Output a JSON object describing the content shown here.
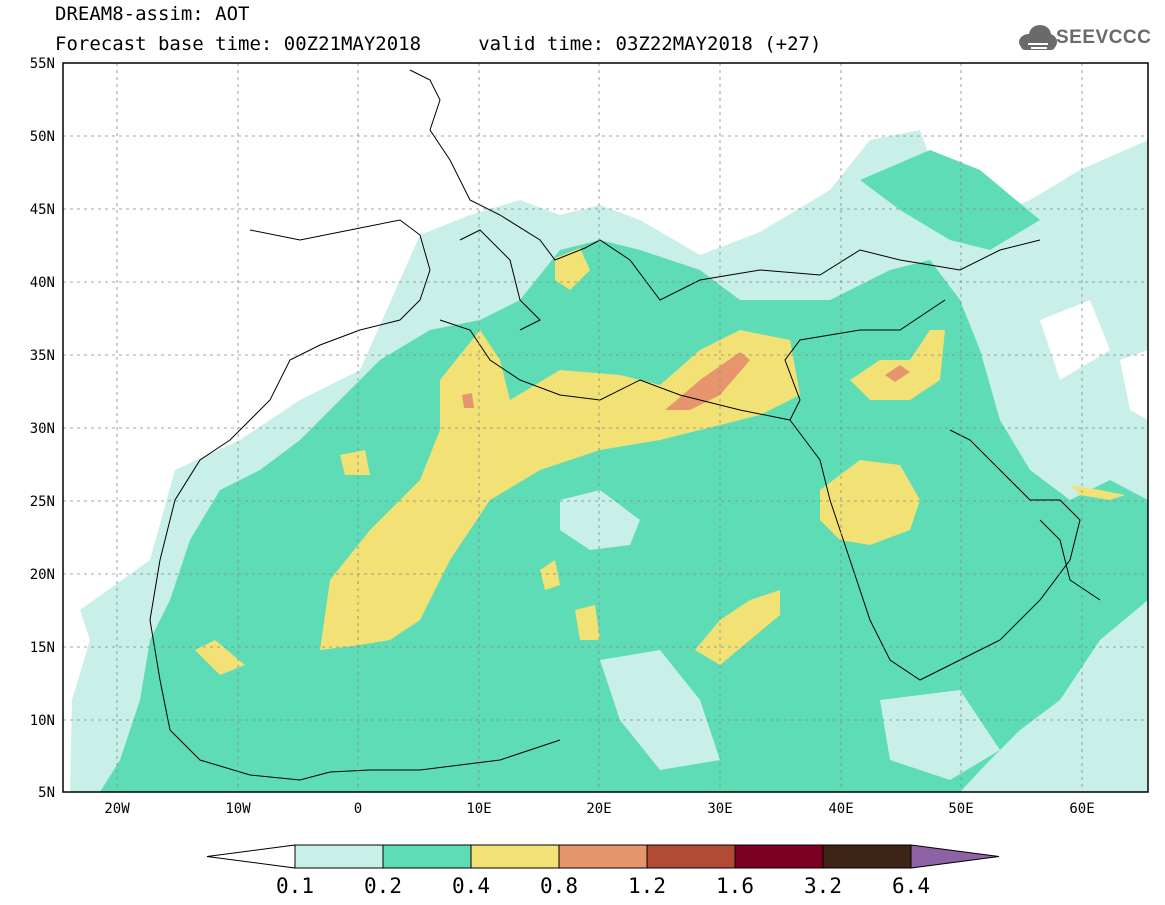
{
  "title": {
    "line1": "DREAM8-assim: AOT",
    "line2": "Forecast base time: 00Z21MAY2018     valid time: 03Z22MAY2018 (+27)"
  },
  "logo": {
    "text": "SEEVCCC",
    "icon": "cloud-icon"
  },
  "map": {
    "lon_range": [
      -25,
      65
    ],
    "lat_range": [
      5,
      55
    ],
    "lat_ticks": [
      "55N",
      "50N",
      "45N",
      "40N",
      "35N",
      "30N",
      "25N",
      "20N",
      "15N",
      "10N",
      "5N"
    ],
    "lon_ticks": [
      "20W",
      "10W",
      "0",
      "10E",
      "20E",
      "30E",
      "40E",
      "50E",
      "60E"
    ],
    "grid": "dashed"
  },
  "colorbar": {
    "labels": [
      "0.1",
      "0.2",
      "0.4",
      "0.8",
      "1.2",
      "1.6",
      "3.2",
      "6.4"
    ],
    "colors": [
      "#c9efe9",
      "#5ddcb6",
      "#f2e276",
      "#e7956d",
      "#b24b34",
      "#7b0022",
      "#3e2416",
      "#8d63a6"
    ]
  }
}
